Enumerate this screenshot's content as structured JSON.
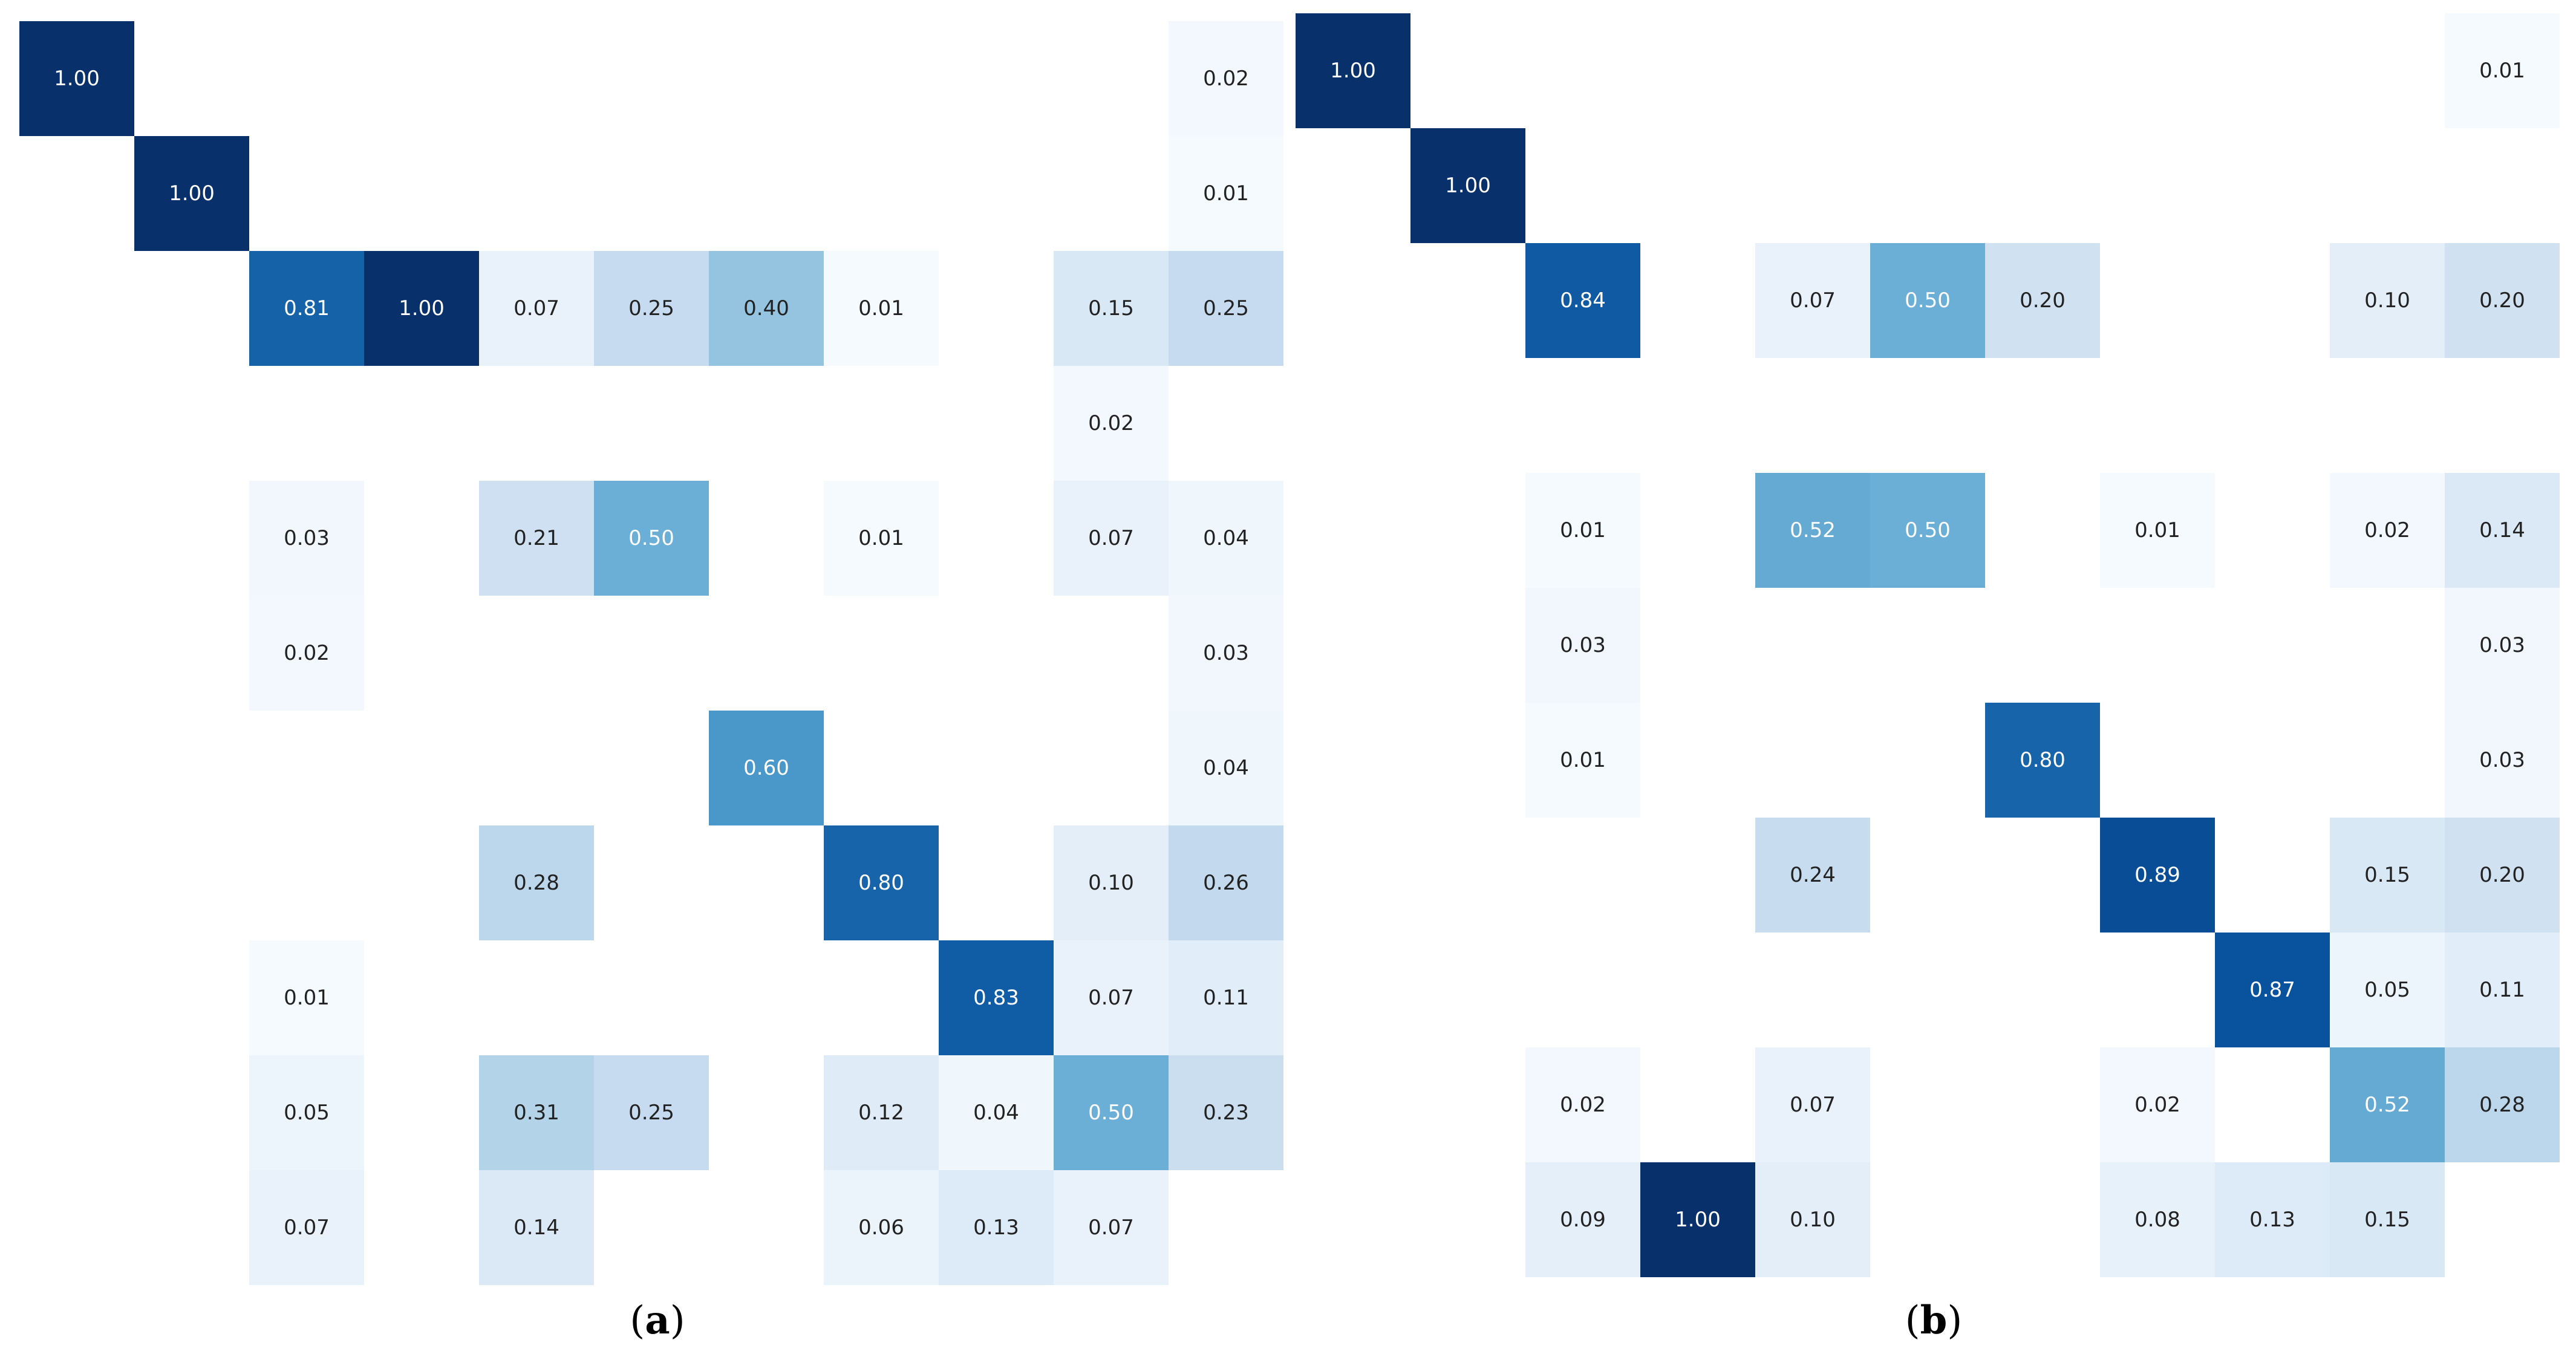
{
  "chart_data": [
    {
      "type": "heatmap",
      "panel_label": "a",
      "rows": 11,
      "cols": 11,
      "value_range": [
        0,
        1
      ],
      "colormap": "Blues",
      "cells": [
        {
          "row": 0,
          "col": 0,
          "value": 1.0,
          "label": "1.00"
        },
        {
          "row": 0,
          "col": 10,
          "value": 0.02,
          "label": "0.02"
        },
        {
          "row": 1,
          "col": 1,
          "value": 1.0,
          "label": "1.00"
        },
        {
          "row": 1,
          "col": 10,
          "value": 0.01,
          "label": "0.01"
        },
        {
          "row": 2,
          "col": 2,
          "value": 0.81,
          "label": "0.81"
        },
        {
          "row": 2,
          "col": 3,
          "value": 1.0,
          "label": "1.00"
        },
        {
          "row": 2,
          "col": 4,
          "value": 0.07,
          "label": "0.07"
        },
        {
          "row": 2,
          "col": 5,
          "value": 0.25,
          "label": "0.25"
        },
        {
          "row": 2,
          "col": 6,
          "value": 0.4,
          "label": "0.40"
        },
        {
          "row": 2,
          "col": 7,
          "value": 0.01,
          "label": "0.01"
        },
        {
          "row": 2,
          "col": 9,
          "value": 0.15,
          "label": "0.15"
        },
        {
          "row": 2,
          "col": 10,
          "value": 0.25,
          "label": "0.25"
        },
        {
          "row": 3,
          "col": 9,
          "value": 0.02,
          "label": "0.02"
        },
        {
          "row": 4,
          "col": 2,
          "value": 0.03,
          "label": "0.03"
        },
        {
          "row": 4,
          "col": 4,
          "value": 0.21,
          "label": "0.21"
        },
        {
          "row": 4,
          "col": 5,
          "value": 0.5,
          "label": "0.50"
        },
        {
          "row": 4,
          "col": 7,
          "value": 0.01,
          "label": "0.01"
        },
        {
          "row": 4,
          "col": 9,
          "value": 0.07,
          "label": "0.07"
        },
        {
          "row": 4,
          "col": 10,
          "value": 0.04,
          "label": "0.04"
        },
        {
          "row": 5,
          "col": 2,
          "value": 0.02,
          "label": "0.02"
        },
        {
          "row": 5,
          "col": 10,
          "value": 0.03,
          "label": "0.03"
        },
        {
          "row": 6,
          "col": 6,
          "value": 0.6,
          "label": "0.60"
        },
        {
          "row": 6,
          "col": 10,
          "value": 0.04,
          "label": "0.04"
        },
        {
          "row": 7,
          "col": 4,
          "value": 0.28,
          "label": "0.28"
        },
        {
          "row": 7,
          "col": 7,
          "value": 0.8,
          "label": "0.80"
        },
        {
          "row": 7,
          "col": 9,
          "value": 0.1,
          "label": "0.10"
        },
        {
          "row": 7,
          "col": 10,
          "value": 0.26,
          "label": "0.26"
        },
        {
          "row": 8,
          "col": 2,
          "value": 0.01,
          "label": "0.01"
        },
        {
          "row": 8,
          "col": 8,
          "value": 0.83,
          "label": "0.83"
        },
        {
          "row": 8,
          "col": 9,
          "value": 0.07,
          "label": "0.07"
        },
        {
          "row": 8,
          "col": 10,
          "value": 0.11,
          "label": "0.11"
        },
        {
          "row": 9,
          "col": 2,
          "value": 0.05,
          "label": "0.05"
        },
        {
          "row": 9,
          "col": 4,
          "value": 0.31,
          "label": "0.31"
        },
        {
          "row": 9,
          "col": 5,
          "value": 0.25,
          "label": "0.25"
        },
        {
          "row": 9,
          "col": 7,
          "value": 0.12,
          "label": "0.12"
        },
        {
          "row": 9,
          "col": 8,
          "value": 0.04,
          "label": "0.04"
        },
        {
          "row": 9,
          "col": 9,
          "value": 0.5,
          "label": "0.50"
        },
        {
          "row": 9,
          "col": 10,
          "value": 0.23,
          "label": "0.23"
        },
        {
          "row": 10,
          "col": 2,
          "value": 0.07,
          "label": "0.07"
        },
        {
          "row": 10,
          "col": 4,
          "value": 0.14,
          "label": "0.14"
        },
        {
          "row": 10,
          "col": 7,
          "value": 0.06,
          "label": "0.06"
        },
        {
          "row": 10,
          "col": 8,
          "value": 0.13,
          "label": "0.13"
        },
        {
          "row": 10,
          "col": 9,
          "value": 0.07,
          "label": "0.07"
        }
      ]
    },
    {
      "type": "heatmap",
      "panel_label": "b",
      "rows": 11,
      "cols": 11,
      "value_range": [
        0,
        1
      ],
      "colormap": "Blues",
      "cells": [
        {
          "row": 0,
          "col": 0,
          "value": 1.0,
          "label": "1.00"
        },
        {
          "row": 0,
          "col": 10,
          "value": 0.01,
          "label": "0.01"
        },
        {
          "row": 1,
          "col": 1,
          "value": 1.0,
          "label": "1.00"
        },
        {
          "row": 2,
          "col": 2,
          "value": 0.84,
          "label": "0.84"
        },
        {
          "row": 2,
          "col": 4,
          "value": 0.07,
          "label": "0.07"
        },
        {
          "row": 2,
          "col": 5,
          "value": 0.5,
          "label": "0.50"
        },
        {
          "row": 2,
          "col": 6,
          "value": 0.2,
          "label": "0.20"
        },
        {
          "row": 2,
          "col": 9,
          "value": 0.1,
          "label": "0.10"
        },
        {
          "row": 2,
          "col": 10,
          "value": 0.2,
          "label": "0.20"
        },
        {
          "row": 4,
          "col": 2,
          "value": 0.01,
          "label": "0.01"
        },
        {
          "row": 4,
          "col": 4,
          "value": 0.52,
          "label": "0.52"
        },
        {
          "row": 4,
          "col": 5,
          "value": 0.5,
          "label": "0.50"
        },
        {
          "row": 4,
          "col": 7,
          "value": 0.01,
          "label": "0.01"
        },
        {
          "row": 4,
          "col": 9,
          "value": 0.02,
          "label": "0.02"
        },
        {
          "row": 4,
          "col": 10,
          "value": 0.14,
          "label": "0.14"
        },
        {
          "row": 5,
          "col": 2,
          "value": 0.03,
          "label": "0.03"
        },
        {
          "row": 5,
          "col": 10,
          "value": 0.03,
          "label": "0.03"
        },
        {
          "row": 6,
          "col": 2,
          "value": 0.01,
          "label": "0.01"
        },
        {
          "row": 6,
          "col": 6,
          "value": 0.8,
          "label": "0.80"
        },
        {
          "row": 6,
          "col": 10,
          "value": 0.03,
          "label": "0.03"
        },
        {
          "row": 7,
          "col": 4,
          "value": 0.24,
          "label": "0.24"
        },
        {
          "row": 7,
          "col": 7,
          "value": 0.89,
          "label": "0.89"
        },
        {
          "row": 7,
          "col": 9,
          "value": 0.15,
          "label": "0.15"
        },
        {
          "row": 7,
          "col": 10,
          "value": 0.2,
          "label": "0.20"
        },
        {
          "row": 8,
          "col": 8,
          "value": 0.87,
          "label": "0.87"
        },
        {
          "row": 8,
          "col": 9,
          "value": 0.05,
          "label": "0.05"
        },
        {
          "row": 8,
          "col": 10,
          "value": 0.11,
          "label": "0.11"
        },
        {
          "row": 9,
          "col": 2,
          "value": 0.02,
          "label": "0.02"
        },
        {
          "row": 9,
          "col": 4,
          "value": 0.07,
          "label": "0.07"
        },
        {
          "row": 9,
          "col": 7,
          "value": 0.02,
          "label": "0.02"
        },
        {
          "row": 9,
          "col": 9,
          "value": 0.52,
          "label": "0.52"
        },
        {
          "row": 9,
          "col": 10,
          "value": 0.28,
          "label": "0.28"
        },
        {
          "row": 10,
          "col": 2,
          "value": 0.09,
          "label": "0.09"
        },
        {
          "row": 10,
          "col": 3,
          "value": 1.0,
          "label": "1.00"
        },
        {
          "row": 10,
          "col": 4,
          "value": 0.1,
          "label": "0.10"
        },
        {
          "row": 10,
          "col": 7,
          "value": 0.08,
          "label": "0.08"
        },
        {
          "row": 10,
          "col": 8,
          "value": 0.13,
          "label": "0.13"
        },
        {
          "row": 10,
          "col": 9,
          "value": 0.15,
          "label": "0.15"
        }
      ]
    }
  ]
}
